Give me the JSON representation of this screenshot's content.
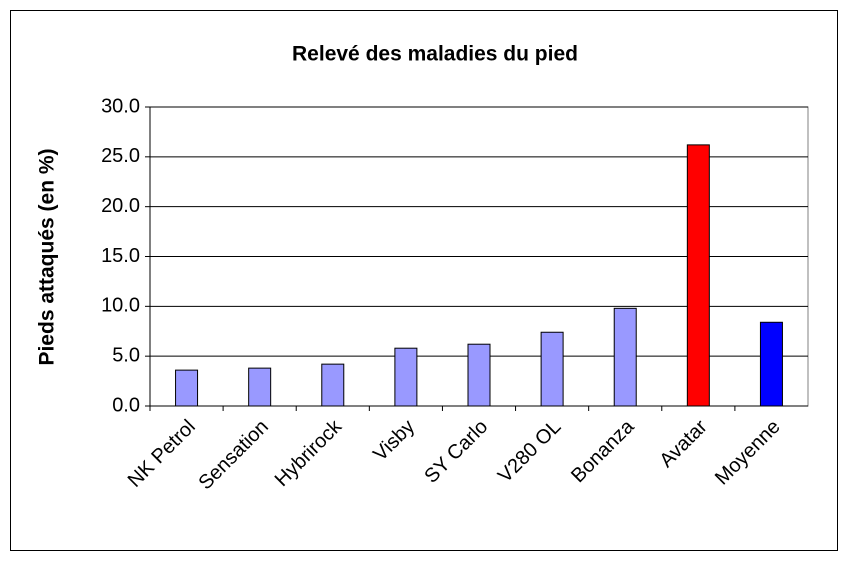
{
  "chart_data": {
    "type": "bar",
    "title": "Relevé des maladies du pied",
    "y_label": "Pieds attaqués (en %)",
    "categories": [
      "NK Petrol",
      "Sensation",
      "Hybrirock",
      "Visby",
      "SY Carlo",
      "V280 OL",
      "Bonanza",
      "Avatar",
      "Moyenne"
    ],
    "values": [
      3.6,
      3.8,
      4.2,
      5.8,
      6.2,
      7.4,
      9.8,
      26.2,
      8.4
    ],
    "colors": [
      "#9999ff",
      "#9999ff",
      "#9999ff",
      "#9999ff",
      "#9999ff",
      "#9999ff",
      "#9999ff",
      "#ff0000",
      "#0000ff"
    ],
    "ylim": [
      0,
      30
    ],
    "yticks": [
      {
        "value": 0,
        "label": "0.0"
      },
      {
        "value": 5,
        "label": "5.0"
      },
      {
        "value": 10,
        "label": "10.0"
      },
      {
        "value": 15,
        "label": "15.0"
      },
      {
        "value": 20,
        "label": "20.0"
      },
      {
        "value": 25,
        "label": "25.0"
      },
      {
        "value": 30,
        "label": "30.0"
      }
    ],
    "grid": true
  }
}
